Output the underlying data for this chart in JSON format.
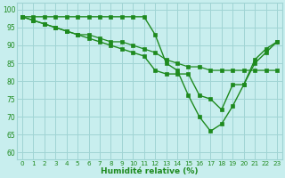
{
  "line1_y": [
    98,
    98,
    98,
    98,
    98,
    98,
    98,
    98,
    98,
    98,
    98,
    98,
    93,
    85,
    83,
    76,
    70,
    66,
    68,
    73,
    79,
    86,
    89,
    91
  ],
  "line2_y": [
    98,
    97,
    96,
    95,
    94,
    93,
    93,
    92,
    91,
    91,
    90,
    89,
    88,
    86,
    85,
    84,
    84,
    83,
    83,
    83,
    83,
    83,
    83,
    83
  ],
  "line3_y": [
    98,
    97,
    96,
    95,
    94,
    93,
    92,
    91,
    90,
    89,
    88,
    87,
    83,
    82,
    82,
    82,
    76,
    75,
    72,
    79,
    79,
    85,
    88,
    91
  ],
  "line_color": "#1e8a1e",
  "bg_color": "#c8eeee",
  "grid_color": "#a0d4d4",
  "xlabel": "Humidité relative (%)",
  "ylim": [
    58,
    102
  ],
  "xlim": [
    -0.5,
    23.5
  ],
  "yticks": [
    60,
    65,
    70,
    75,
    80,
    85,
    90,
    95,
    100
  ],
  "xticks": [
    0,
    1,
    2,
    3,
    4,
    5,
    6,
    7,
    8,
    9,
    10,
    11,
    12,
    13,
    14,
    15,
    16,
    17,
    18,
    19,
    20,
    21,
    22,
    23
  ]
}
